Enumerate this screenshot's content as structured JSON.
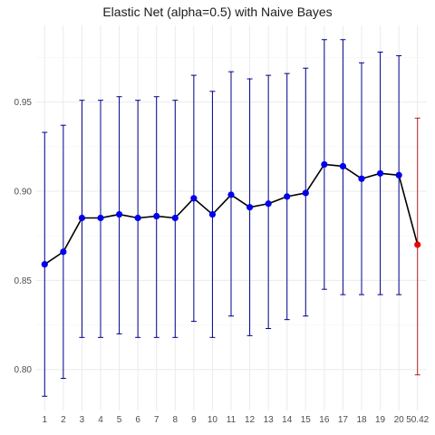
{
  "chart_data": {
    "type": "line",
    "title": "Elastic Net (alpha=0.5) with Naive Bayes",
    "xlabel": "",
    "ylabel": "",
    "categories": [
      "1",
      "2",
      "3",
      "4",
      "5",
      "6",
      "7",
      "8",
      "9",
      "10",
      "11",
      "12",
      "13",
      "14",
      "15",
      "16",
      "17",
      "18",
      "19",
      "20",
      "50.42"
    ],
    "values": [
      0.859,
      0.866,
      0.885,
      0.885,
      0.887,
      0.885,
      0.886,
      0.885,
      0.896,
      0.887,
      0.898,
      0.891,
      0.893,
      0.897,
      0.899,
      0.915,
      0.914,
      0.907,
      0.91,
      0.909,
      0.87
    ],
    "lower": [
      0.785,
      0.795,
      0.818,
      0.818,
      0.82,
      0.818,
      0.818,
      0.818,
      0.827,
      0.818,
      0.83,
      0.819,
      0.823,
      0.828,
      0.83,
      0.845,
      0.842,
      0.842,
      0.842,
      0.842,
      0.797
    ],
    "upper": [
      0.933,
      0.937,
      0.951,
      0.951,
      0.953,
      0.951,
      0.953,
      0.951,
      0.965,
      0.956,
      0.967,
      0.963,
      0.965,
      0.966,
      0.969,
      0.985,
      0.985,
      0.972,
      0.978,
      0.976,
      0.941
    ],
    "highlight_index": 20,
    "yticks": [
      0.8,
      0.85,
      0.9,
      0.95
    ],
    "ytick_labels": [
      "0.80",
      "0.85",
      "0.90",
      "0.95"
    ],
    "ylim": [
      0.777,
      0.993
    ],
    "grid": true,
    "legend": "none"
  },
  "colors": {
    "point": "#0000ee",
    "errorbar": "#00008b",
    "highlight_point": "#ee0000",
    "highlight_errorbar": "#b22222",
    "line": "#000000",
    "grid_major": "#ebebeb",
    "grid_minor": "#f4f4f4"
  }
}
